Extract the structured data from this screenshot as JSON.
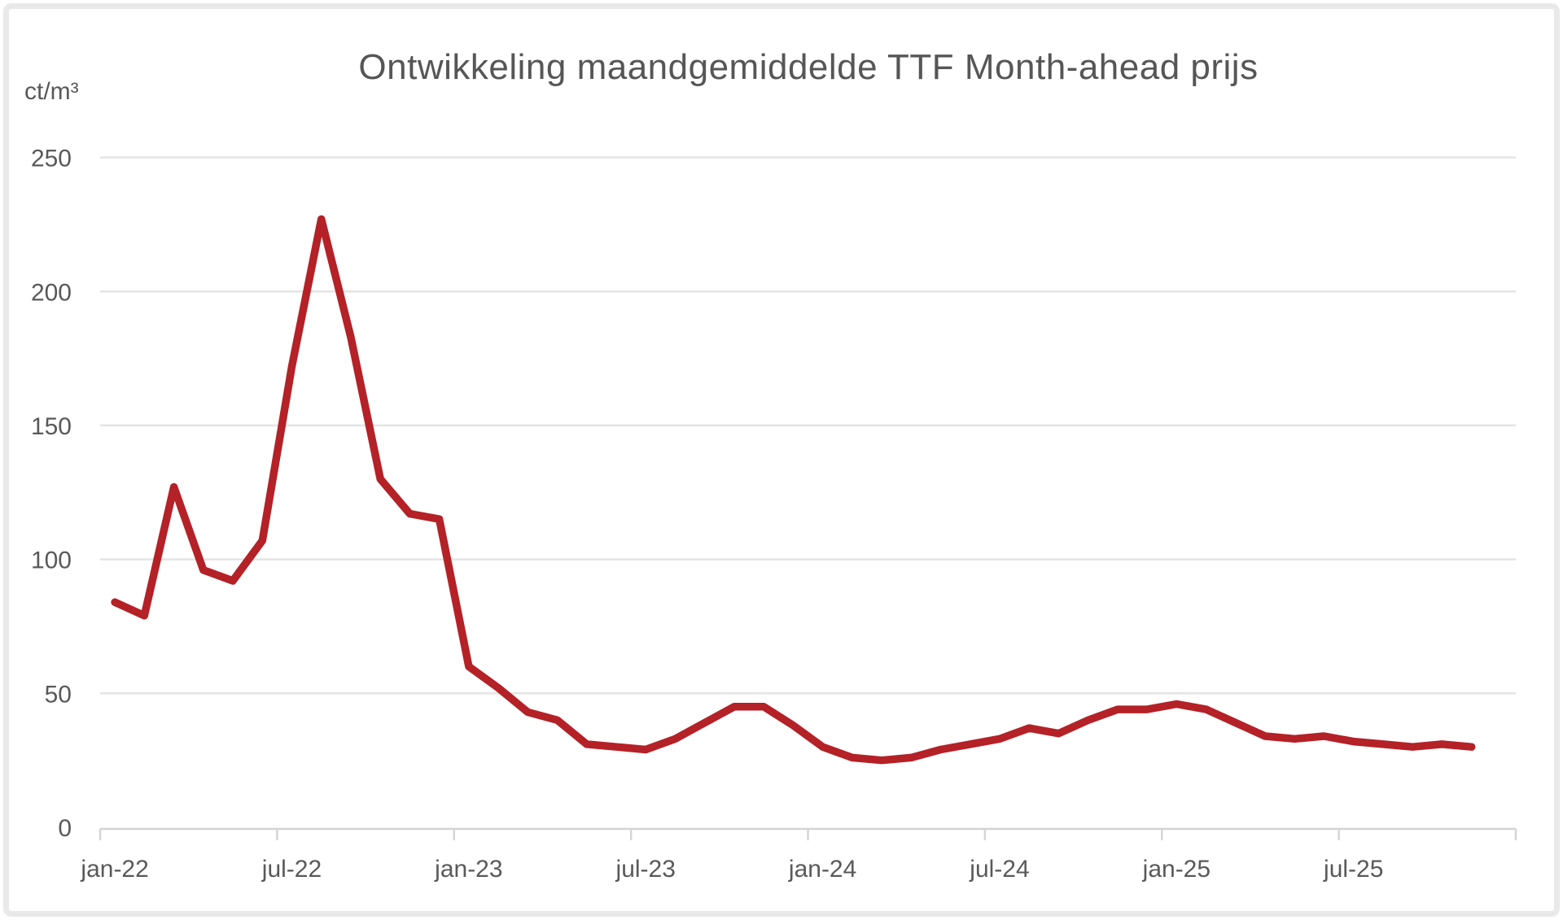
{
  "window": {
    "background": "#ffffff",
    "frame_color": "#e9e9e9"
  },
  "chart_data": {
    "type": "line",
    "title": "Ontwikkeling maandgemiddelde TTF Month-ahead prijs",
    "unit_label": "ct/m³",
    "categories": [
      "jan-22",
      "feb-22",
      "mrt-22",
      "apr-22",
      "mei-22",
      "jun-22",
      "jul-22",
      "aug-22",
      "sep-22",
      "okt-22",
      "nov-22",
      "dec-22",
      "jan-23",
      "feb-23",
      "mrt-23",
      "apr-23",
      "mei-23",
      "jun-23",
      "jul-23",
      "aug-23",
      "sep-23",
      "okt-23",
      "nov-23",
      "dec-23",
      "jan-24",
      "feb-24",
      "mrt-24",
      "apr-24",
      "mei-24",
      "jun-24",
      "jul-24",
      "aug-24",
      "sep-24",
      "okt-24",
      "nov-24",
      "dec-24",
      "jan-25",
      "feb-25",
      "mrt-25",
      "apr-25",
      "mei-25",
      "jun-25",
      "jul-25",
      "aug-25",
      "sep-25",
      "okt-25",
      "nov-25"
    ],
    "values": [
      84,
      79,
      127,
      96,
      92,
      107,
      172,
      227,
      183,
      130,
      117,
      115,
      60,
      52,
      43,
      40,
      31,
      30,
      29,
      33,
      39,
      45,
      45,
      38,
      30,
      26,
      25,
      26,
      29,
      31,
      33,
      37,
      35,
      40,
      44,
      44,
      46,
      44,
      39,
      34,
      33,
      34,
      32,
      31,
      30,
      31,
      30
    ],
    "x_tick_labels": [
      "jan-22",
      "jul-22",
      "jan-23",
      "jul-23",
      "jan-24",
      "jul-24",
      "jan-25",
      "jul-25"
    ],
    "x_tick_interval_months": 6,
    "y_ticks": [
      0,
      50,
      100,
      150,
      200,
      250
    ],
    "ylim": [
      0,
      250
    ],
    "xlabel": "",
    "ylabel": "ct/m³",
    "grid": "horizontal",
    "legend": "none",
    "line_color": "#b42127",
    "grid_color": "#e5e5e5",
    "axis_color": "#d4d4d4",
    "text_color": "#595959"
  }
}
